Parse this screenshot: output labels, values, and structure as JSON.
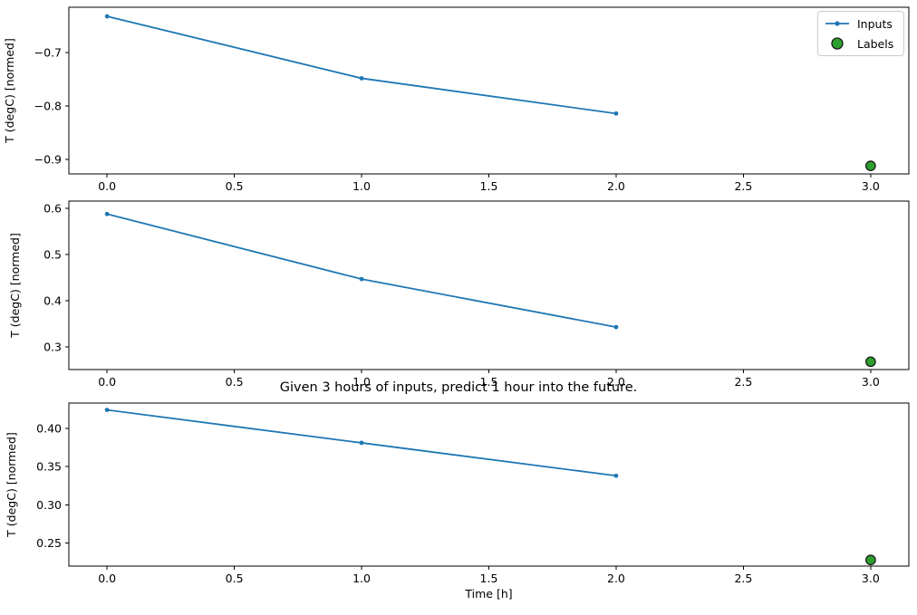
{
  "title": "Given 3 hours of inputs, predict 1 hour into the future.",
  "xlabel": "Time [h]",
  "legend": {
    "position": "upper right",
    "entries": [
      {
        "label": "Inputs",
        "type": "line-with-marker",
        "color": "#1f77b4"
      },
      {
        "label": "Labels",
        "type": "scatter",
        "color": "#2ca02c",
        "edge_color": "#1a1a1a"
      }
    ]
  },
  "colors": {
    "inputs_line": "#1f77b4",
    "labels_marker": "#2ca02c",
    "labels_marker_edge": "#1a1a1a",
    "spine": "#000000",
    "text": "#000000",
    "legend_border": "#cccccc",
    "background": "#ffffff"
  },
  "chart_data": [
    {
      "type": "line",
      "subplot": 1,
      "ylabel": "T (degC) [normed]",
      "xlim": [
        -0.15,
        3.15
      ],
      "ylim": [
        -0.927,
        -0.615
      ],
      "x_ticks": {
        "values": [
          0.0,
          0.5,
          1.0,
          1.5,
          2.0,
          2.5,
          3.0
        ],
        "labels": [
          "0.0",
          "0.5",
          "1.0",
          "1.5",
          "2.0",
          "2.5",
          "3.0"
        ]
      },
      "y_ticks": {
        "values": [
          -0.7,
          -0.8,
          -0.9
        ],
        "labels": [
          "−0.7",
          "−0.8",
          "−0.9"
        ]
      },
      "series": [
        {
          "name": "Inputs",
          "style": "line+marker",
          "x": [
            0,
            1,
            2
          ],
          "y": [
            -0.632,
            -0.748,
            -0.814
          ]
        },
        {
          "name": "Labels",
          "style": "scatter",
          "x": [
            3
          ],
          "y": [
            -0.912
          ]
        }
      ]
    },
    {
      "type": "line",
      "subplot": 2,
      "ylabel": "T (degC) [normed]",
      "xlim": [
        -0.15,
        3.15
      ],
      "ylim": [
        0.251,
        0.616
      ],
      "x_ticks": {
        "values": [
          0.0,
          0.5,
          1.0,
          1.5,
          2.0,
          2.5,
          3.0
        ],
        "labels": [
          "0.0",
          "0.5",
          "1.0",
          "1.5",
          "2.0",
          "2.5",
          "3.0"
        ]
      },
      "y_ticks": {
        "values": [
          0.6,
          0.5,
          0.4,
          0.3
        ],
        "labels": [
          "0.6",
          "0.5",
          "0.4",
          "0.3"
        ]
      },
      "series": [
        {
          "name": "Inputs",
          "style": "line+marker",
          "x": [
            0,
            1,
            2
          ],
          "y": [
            0.588,
            0.447,
            0.343
          ]
        },
        {
          "name": "Labels",
          "style": "scatter",
          "x": [
            3
          ],
          "y": [
            0.268
          ]
        }
      ]
    },
    {
      "type": "line",
      "subplot": 3,
      "ylabel": "T (degC) [normed]",
      "xlabel": "Time [h]",
      "xlim": [
        -0.15,
        3.15
      ],
      "ylim": [
        0.22,
        0.433
      ],
      "x_ticks": {
        "values": [
          0.0,
          0.5,
          1.0,
          1.5,
          2.0,
          2.5,
          3.0
        ],
        "labels": [
          "0.0",
          "0.5",
          "1.0",
          "1.5",
          "2.0",
          "2.5",
          "3.0"
        ]
      },
      "y_ticks": {
        "values": [
          0.4,
          0.35,
          0.3,
          0.25
        ],
        "labels": [
          "0.40",
          "0.35",
          "0.30",
          "0.25"
        ]
      },
      "series": [
        {
          "name": "Inputs",
          "style": "line+marker",
          "x": [
            0,
            1,
            2
          ],
          "y": [
            0.424,
            0.381,
            0.338
          ]
        },
        {
          "name": "Labels",
          "style": "scatter",
          "x": [
            3
          ],
          "y": [
            0.228
          ]
        }
      ]
    }
  ]
}
